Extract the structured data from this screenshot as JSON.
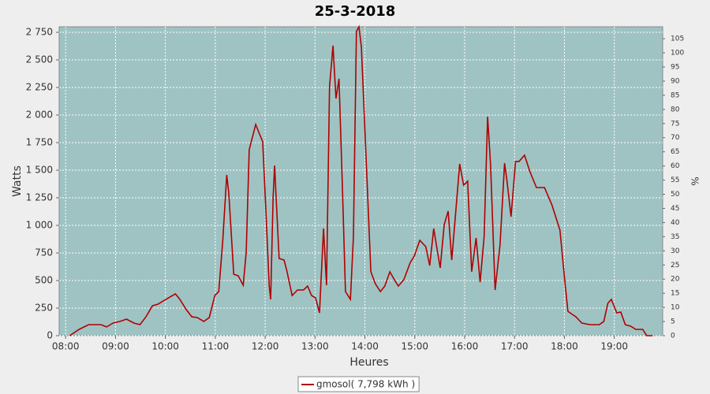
{
  "chart_data": {
    "type": "line",
    "title": "25-3-2018",
    "xlabel": "Heures",
    "ylabel": "Watts",
    "y2label": "%",
    "x": [
      8.08,
      8.27,
      8.46,
      8.71,
      8.82,
      8.95,
      9.09,
      9.22,
      9.37,
      9.49,
      9.61,
      9.74,
      9.85,
      10.01,
      10.2,
      10.29,
      10.42,
      10.53,
      10.64,
      10.77,
      10.88,
      10.99,
      11.07,
      11.15,
      11.23,
      11.27,
      11.37,
      11.46,
      11.56,
      11.62,
      11.68,
      11.81,
      11.95,
      12.01,
      12.08,
      12.11,
      12.16,
      12.19,
      12.22,
      12.28,
      12.38,
      12.44,
      12.54,
      12.65,
      12.77,
      12.85,
      12.93,
      13.01,
      13.09,
      13.17,
      13.23,
      13.29,
      13.36,
      13.42,
      13.48,
      13.55,
      13.61,
      13.71,
      13.77,
      13.83,
      13.88,
      13.93,
      14.01,
      14.12,
      14.21,
      14.31,
      14.4,
      14.5,
      14.59,
      14.67,
      14.78,
      14.91,
      14.99,
      15.1,
      15.22,
      15.3,
      15.38,
      15.43,
      15.51,
      15.59,
      15.67,
      15.74,
      15.82,
      15.9,
      15.98,
      16.06,
      16.14,
      16.23,
      16.31,
      16.39,
      16.46,
      16.52,
      16.61,
      16.71,
      16.8,
      16.85,
      16.93,
      17.02,
      17.09,
      17.2,
      17.31,
      17.44,
      17.6,
      17.75,
      17.91,
      17.99,
      18.07,
      18.23,
      18.35,
      18.51,
      18.7,
      18.79,
      18.87,
      18.94,
      19.05,
      19.13,
      19.22,
      19.33,
      19.43,
      19.57,
      19.65,
      19.77
    ],
    "series": [
      {
        "name": "gmosol( 7,798 kWh )",
        "color": "#b00000",
        "values": [
          0,
          57,
          100,
          100,
          79,
          114,
          129,
          150,
          114,
          100,
          171,
          271,
          286,
          329,
          379,
          329,
          236,
          171,
          164,
          129,
          164,
          364,
          400,
          864,
          1457,
          1293,
          557,
          543,
          457,
          757,
          1686,
          1914,
          1757,
          1186,
          457,
          329,
          1257,
          1543,
          1257,
          700,
          686,
          579,
          364,
          414,
          414,
          450,
          364,
          343,
          207,
          971,
          457,
          2257,
          2629,
          2150,
          2329,
          1329,
          400,
          329,
          900,
          2757,
          2800,
          2614,
          1757,
          579,
          471,
          400,
          450,
          579,
          507,
          450,
          507,
          664,
          721,
          864,
          807,
          636,
          971,
          829,
          614,
          1007,
          1129,
          686,
          1114,
          1557,
          1364,
          1400,
          579,
          886,
          486,
          900,
          1986,
          1543,
          414,
          829,
          1564,
          1400,
          1079,
          1579,
          1579,
          1636,
          1486,
          1343,
          1343,
          1186,
          957,
          579,
          221,
          171,
          114,
          100,
          100,
          129,
          293,
          329,
          207,
          214,
          100,
          86,
          57,
          57,
          0,
          0
        ]
      }
    ],
    "xlim": [
      7.87,
      19.97
    ],
    "xticks": [
      {
        "value": 8,
        "label": "08:00"
      },
      {
        "value": 9,
        "label": "09:00"
      },
      {
        "value": 10,
        "label": "10:00"
      },
      {
        "value": 11,
        "label": "11:00"
      },
      {
        "value": 12,
        "label": "12:00"
      },
      {
        "value": 13,
        "label": "13:00"
      },
      {
        "value": 14,
        "label": "14:00"
      },
      {
        "value": 15,
        "label": "15:00"
      },
      {
        "value": 16,
        "label": "16:00"
      },
      {
        "value": 17,
        "label": "17:00"
      },
      {
        "value": 18,
        "label": "18:00"
      },
      {
        "value": 19,
        "label": "19:00"
      }
    ],
    "ylim": [
      0,
      2800
    ],
    "yticks": [
      0,
      250,
      500,
      750,
      {
        "value": 1000,
        "label": "1 000"
      },
      {
        "value": 1250,
        "label": "1 250"
      },
      {
        "value": 1500,
        "label": "1 500"
      },
      {
        "value": 1750,
        "label": "1 750"
      },
      {
        "value": 2000,
        "label": "2 000"
      },
      {
        "value": 2250,
        "label": "2 250"
      },
      {
        "value": 2500,
        "label": "2 500"
      },
      {
        "value": 2750,
        "label": "2 750"
      }
    ],
    "y2lim": [
      0,
      109.2
    ],
    "y2ticks": [
      0,
      5,
      10,
      15,
      20,
      25,
      30,
      35,
      40,
      45,
      50,
      55,
      60,
      65,
      70,
      75,
      80,
      85,
      90,
      95,
      100,
      105
    ],
    "grid": true,
    "background": "#9fc3c3",
    "legend": "bottom"
  }
}
